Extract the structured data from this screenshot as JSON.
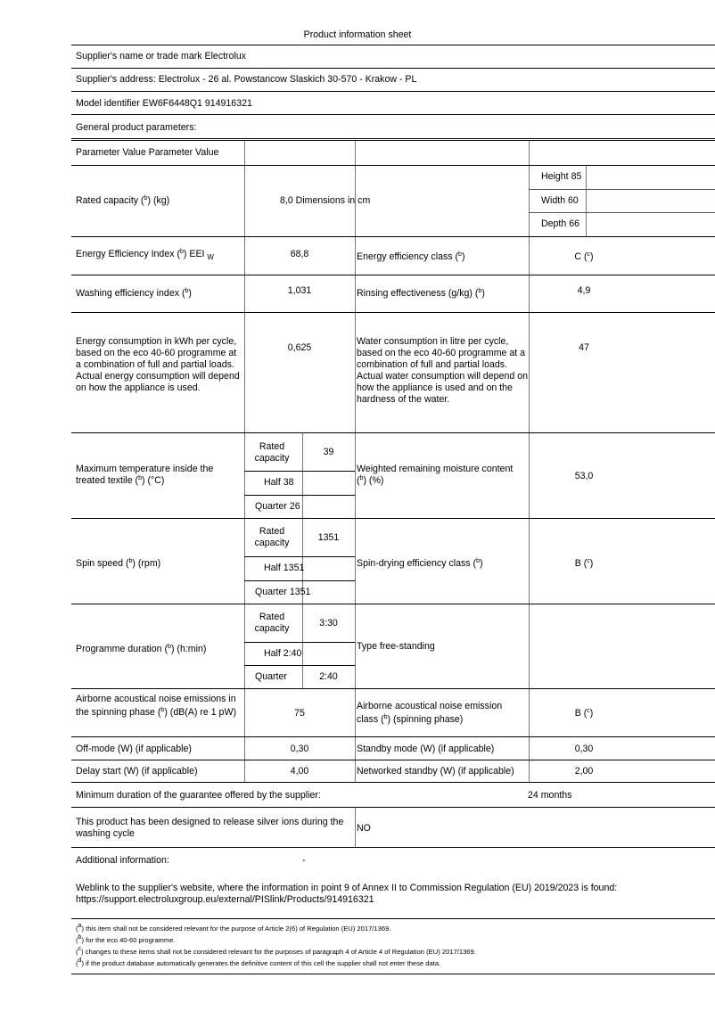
{
  "title": "Product information sheet",
  "supplier": "Supplier's name or trade mark Electrolux",
  "address": "Supplier's address: Electrolux - 26 al. Powstancow Slaskich 30-570 - Krakow - PL",
  "model": "Model identifier EW6F6448Q1 914916321",
  "general": "General product parameters:",
  "table": {
    "header": "Parameter Value Parameter Value",
    "rated_capacity": {
      "label": "Rated capacity (b) (kg)",
      "value": "8,0 Dimensions in cm"
    },
    "dimensions": [
      "Height 85",
      "Width 60",
      "Depth 66"
    ],
    "eei": {
      "label": "Energy Efficiency Index (b) EEI",
      "subscript": "W",
      "value": "68,8",
      "label2": "Energy efficiency class (b)",
      "value2": "C (c)"
    },
    "wash": {
      "label": "Washing efficiency index (b)",
      "value": "1,031",
      "label2": "Rinsing effectiveness (g/kg) (b)",
      "value2": "4,9"
    },
    "energy": {
      "label": "Energy consumption in kWh per cycle, based on the eco 40-60 programme at a combination of full and partial loads. Actual energy consumption will depend on how the appliance is used.",
      "value": "0,625",
      "label2": "Water consumption in litre per cycle, based on the eco 40-60 programme at a combination of full and partial loads. Actual water consumption will depend on how the appliance is used and on the hardness of the water.",
      "value2": "47"
    },
    "temp": {
      "label": "Maximum temperature inside the treated textile (b) (°C)",
      "rated": "Rated capacity",
      "rated_value": "39",
      "half": "Half 38",
      "quarter": "Quarter 26",
      "label2": "Weighted remaining moisture content (b) (%)",
      "value2": "53,0"
    },
    "spin": {
      "label": "Spin speed (b) (rpm)",
      "rated": "Rated capacity",
      "rated_value": "1351",
      "half": "Half 1351",
      "quarter": "Quarter 1351",
      "label2": "Spin-drying efficiency class (b)",
      "value2": "B (c)"
    },
    "duration": {
      "label": "Programme duration (b) (h:min)",
      "rated": "Rated capacity",
      "rated_value": "3:30",
      "half": "Half 2:40",
      "quarter": "Quarter",
      "quarter_value": "2:40",
      "label2": "Type free-standing"
    },
    "noise": {
      "label": "Airborne acoustical noise emissions in the spinning phase (b) (dB(A) re 1 pW)",
      "value": "75",
      "label2": "Airborne acoustical noise emission class (b) (spinning phase)",
      "value2": "B (c)"
    },
    "offmode": {
      "label": "Off-mode (W) (if applicable)",
      "value": "0,30",
      "label2": "Standby mode (W) (if applicable)",
      "value2": "0,30"
    },
    "delay": {
      "label": "Delay start (W) (if applicable)",
      "value": "4,00",
      "label2": "Networked standby (W) (if applicable)",
      "value2": "2,00"
    }
  },
  "guarantee": {
    "label": "Minimum duration of the guarantee offered by the supplier:",
    "value": "24 months"
  },
  "silver": {
    "label": "This product has been designed to release silver ions during the washing cycle",
    "value": "NO"
  },
  "additional": {
    "label": "Additional information:",
    "value": "-"
  },
  "weblink": "Weblink to the supplier's website, where the information in point 9 of Annex II to Commission Regulation (EU) 2019/2023 is found: https://support.electroluxgroup.eu/external/PISlink/Products/914916321",
  "footnotes": [
    "(a) this item shall not be considered relevant for the purpose of Article 2(6) of Regulation (EU) 2017/1369.",
    "(b) for the eco 40-60 programme.",
    "(c) changes to these items shall not be considered relevant for the purposes of paragraph 4 of Article 4 of Regulation (EU) 2017/1369.",
    "(d) if the product database automatically generates the definitive content of this cell the supplier shall not enter these data."
  ]
}
